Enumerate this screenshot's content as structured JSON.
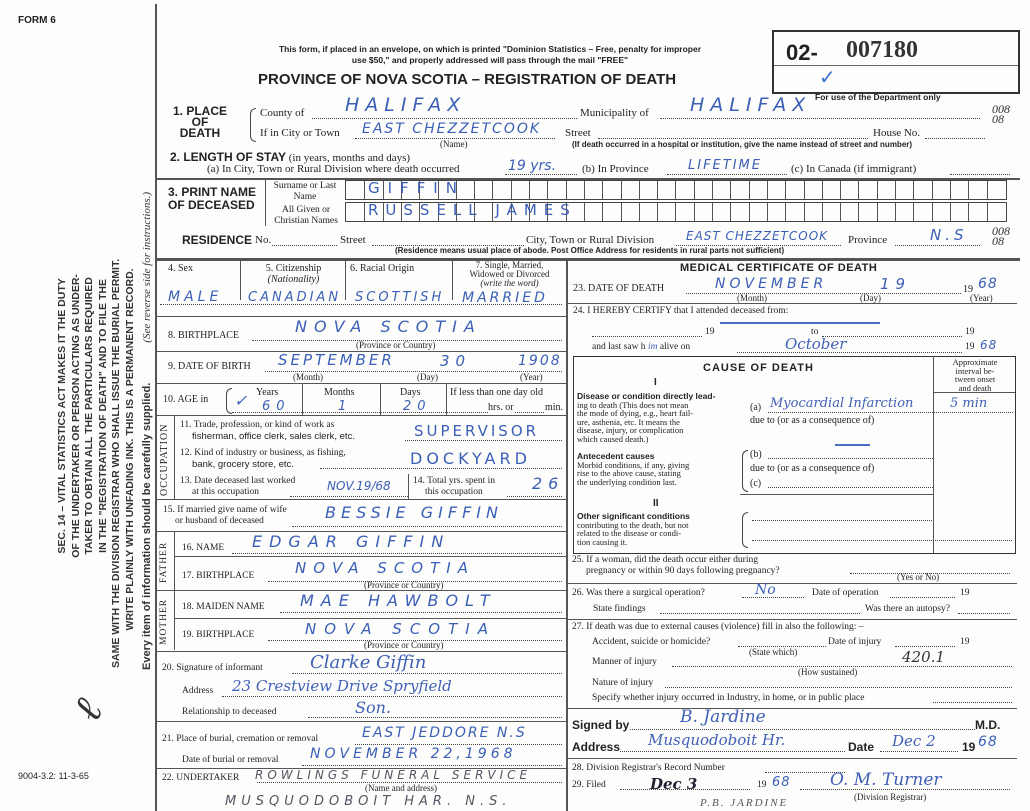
{
  "form_label": "FORM 6",
  "notice": [
    "This form, if placed in an envelope, on which is printed \"Dominion Statistics – Free, penalty for improper",
    "use $50,\" and properly addressed will pass through the mail \"FREE\""
  ],
  "title": "PROVINCE OF NOVA SCOTIA – REGISTRATION OF DEATH",
  "registration_number": {
    "prefix": "02-",
    "number": "007180",
    "check": "✓"
  },
  "dept_only": "For use of the Department only",
  "side_codes": [
    "008",
    "08"
  ],
  "sidebar": {
    "statute": [
      "SEC. 14 – VITAL STATISTICS ACT MAKES IT THE DUTY",
      "OF THE UNDERTAKER OR PERSON ACTING AS UNDER-",
      "TAKER TO OBTAIN ALL THE PARTICULARS REQUIRED",
      "IN THE \"REGISTRATION OF DEATH\" AND TO FILE THE",
      "SAME WITH THE DIVISION REGISTRAR WHO SHALL ISSUE THE BURIAL PERMIT.",
      "WRITE PLAINLY WITH UNFADING INK. THIS IS A PERMANENT RECORD."
    ],
    "every_item": "Every item of information should be carefully supplied.",
    "reverse": "(See reverse side for instructions.)",
    "form_code": "9004-3.2: 11-3-65"
  },
  "place": {
    "label": "1. PLACE OF DEATH",
    "county_label": "County of",
    "county": "HALIFAX",
    "municipality_label": "Municipality of",
    "municipality": "HALIFAX",
    "city_label": "If in City or Town",
    "city": "EAST CHEZZETCOOK",
    "street_label": "Street",
    "house_label": "House No.",
    "name_note": "(Name)",
    "hospital_note": "(If death occurred in a hospital or institution, give the name instead of street and number)"
  },
  "stay": {
    "label": "2. LENGTH OF STAY",
    "label_note": "(in years, months and days)",
    "a_label": "(a) In City, Town or Rural Division where death occurred",
    "a": "19 yrs.",
    "b_label": "(b) In Province",
    "b": "LIFETIME",
    "c_label": "(c) In Canada (if immigrant)"
  },
  "name": {
    "label": "3. PRINT NAME OF DECEASED",
    "surname_label": "Surname or Last Name",
    "surname": "GIFFIN",
    "given_label": "All Given or Christian Names",
    "given": "RUSSELL JAMES"
  },
  "residence": {
    "label": "RESIDENCE",
    "no_label": "No.",
    "street_label": "Street",
    "city_label": "City, Town or Rural Division",
    "city": "EAST CHEZZETCOOK",
    "province_label": "Province",
    "province": "N.S",
    "note": "(Residence means usual place of abode. Post Office Address for residents in rural parts not sufficient)"
  },
  "personal": {
    "sex_label": "4. Sex",
    "sex": "MALE",
    "citizenship_label": "5. Citizenship",
    "citizenship_note": "(Nationality)",
    "citizenship": "CANADIAN",
    "racial_label": "6. Racial Origin",
    "racial": "SCOTTISH",
    "marital_label": [
      "7. Single, Married,",
      "Widowed or Divorced",
      "(write the word)"
    ],
    "marital": "MARRIED"
  },
  "birthplace": {
    "label": "8. BIRTHPLACE",
    "value": "NOVA SCOTIA",
    "note": "(Province or Country)"
  },
  "dob": {
    "label": "9. DATE OF BIRTH",
    "month": "SEPTEMBER",
    "day": "30",
    "year": "1908",
    "month_note": "(Month)",
    "day_note": "(Day)",
    "year_note": "(Year)"
  },
  "age": {
    "label": "10. AGE in",
    "years_label": "Years",
    "years": "60",
    "months_label": "Months",
    "months": "1",
    "days_label": "Days",
    "days": "20",
    "less_label": "If less than one day old",
    "hrs": "hrs. or",
    "min": "min."
  },
  "occupation": {
    "side": "OCCUPATION",
    "q11": [
      "11. Trade, profession, or kind of work as",
      "fisherman, office clerk, sales clerk, etc."
    ],
    "a11": "SUPERVISOR",
    "q12": [
      "12. Kind of industry or business, as fishing,",
      "bank, grocery store, etc."
    ],
    "a12": "DOCKYARD",
    "q13": [
      "13. Date deceased last worked",
      "at this occupation"
    ],
    "a13": "NOV.19/68",
    "q14": [
      "14. Total yrs. spent in",
      "this occupation"
    ],
    "a14": "26"
  },
  "spouse": {
    "label": [
      "15. If married give name of wife",
      "or husband of deceased"
    ],
    "value": "BESSIE GIFFIN"
  },
  "father": {
    "side": "FATHER",
    "name_label": "16. NAME",
    "name": "EDGAR GIFFIN",
    "birthplace_label": "17. BIRTHPLACE",
    "birthplace": "NOVA SCOTIA",
    "note": "(Province or Country)"
  },
  "mother": {
    "side": "MOTHER",
    "name_label": "18. MAIDEN NAME",
    "name": "MAE HAWBOLT",
    "birthplace_label": "19. BIRTHPLACE",
    "birthplace": "NOVA SCOTIA",
    "note": "(Province or Country)"
  },
  "informant": {
    "label": "20. Signature of informant",
    "signature": "Clarke Giffin",
    "address_label": "Address",
    "address": "23 Crestview Drive Spryfield",
    "relationship_label": "Relationship to deceased",
    "relationship": "Son."
  },
  "burial": {
    "place_label": "21. Place of burial, cremation or removal",
    "place": "EAST JEDDORE N.S",
    "date_label": "Date of burial or removal",
    "date": "NOVEMBER 22,1968"
  },
  "undertaker": {
    "label": "22. UNDERTAKER",
    "value": "ROWLINGS FUNERAL SERVICE",
    "note": "(Name and address)",
    "address": "MUSQUODOBOIT HAR. N.S."
  },
  "medical": {
    "title": "MEDICAL CERTIFICATE OF DEATH",
    "dod_label": "23. DATE OF DEATH",
    "dod_month": "NOVEMBER",
    "dod_day": "19",
    "dod_century": "19",
    "dod_year": "68",
    "month_note": "(Month)",
    "day_note": "(Day)",
    "year_note": "(Year)",
    "certify": "24. I HEREBY CERTIFY that I attended deceased from:",
    "from_19": "19",
    "to": "to",
    "to_19": "19",
    "last_saw": "and last saw h",
    "last_saw_who": "im",
    "alive_on": "alive on",
    "last_saw_date": "October",
    "last_19": "19",
    "last_year": "68"
  },
  "cause": {
    "title": "CAUSE OF DEATH",
    "interval_label": [
      "Approximate",
      "interval be-",
      "tween onset",
      "and death"
    ],
    "part1": "I",
    "direct": [
      "Disease or condition directly lead-",
      "ing to death (This does not mean",
      "the mode of dying, e.g., heart fail-",
      "ure, asthenia, etc. It means the",
      "disease, injury, or complication",
      "which caused death.)"
    ],
    "a_label": "(a)",
    "a": "Myocardial Infarction",
    "a_interval": "5 min",
    "due_to": "due to (or as a consequence of)",
    "antecedent": [
      "Antecedent causes",
      "Morbid conditions, if any, giving",
      "rise to the above cause, stating",
      "the underlying condition last."
    ],
    "b_label": "(b)",
    "c_label": "(c)",
    "part2": "II",
    "other": [
      "Other significant conditions",
      "contributing to the death, but not",
      "related to the disease or condi-",
      "tion causing it."
    ]
  },
  "q25": {
    "label": [
      "25. If a woman, did the death occur either during",
      "pregnancy or within 90 days following pregnancy?"
    ],
    "note": "(Yes or No)"
  },
  "q26": {
    "label": "26. Was there a surgical operation?",
    "value": "No",
    "date_label": "Date of operation",
    "c19": "19",
    "findings": "State findings",
    "autopsy": "Was there an autopsy?"
  },
  "q27": {
    "label": "27. If death was due to external causes (violence) fill in also the following: –",
    "accident": "Accident, suicide or homicide?",
    "state_which": "(State which)",
    "date_injury": "Date of injury",
    "c19": "19",
    "code": "420.1",
    "manner": "Manner of injury",
    "how": "(How sustained)",
    "nature": "Nature of injury",
    "specify": "Specify whether injury occurred in Industry, in home, or in public place"
  },
  "signed": {
    "label": "Signed by",
    "md": "M.D.",
    "signature": "B. Jardine",
    "address_label": "Address",
    "address": "Musquodoboit Hr.",
    "date_label": "Date",
    "date": "Dec 2",
    "c19": "19",
    "year": "68"
  },
  "q28": {
    "label": "28. Division Registrar's Record Number"
  },
  "q29": {
    "label": "29. Filed",
    "date": "Dec 3",
    "c19": "19",
    "year": "68",
    "registrar": "O. M. Turner",
    "registrar_note": "(Division Registrar)",
    "stamp": "P.B. JARDINE"
  }
}
